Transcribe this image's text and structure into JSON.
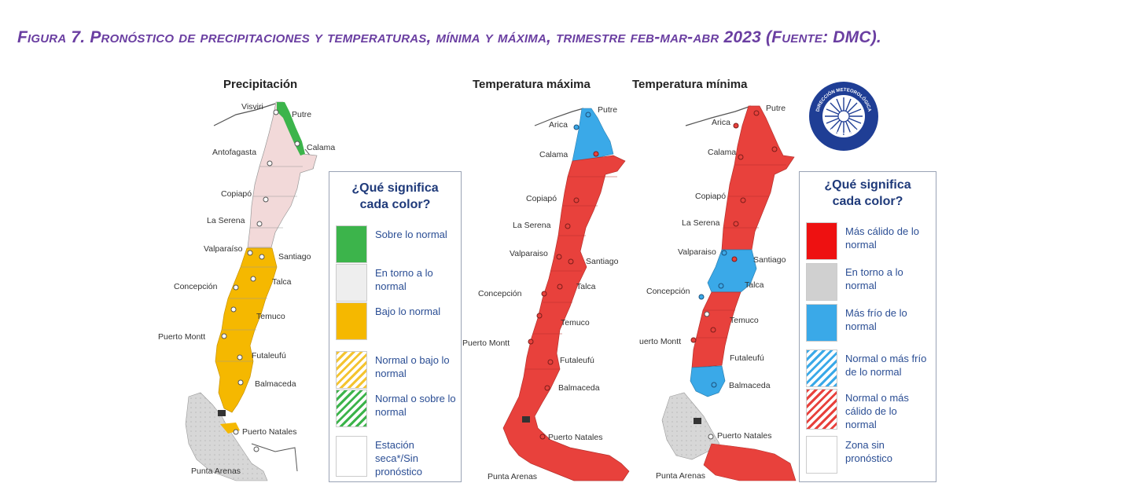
{
  "caption": "Figura 7. Pronóstico de precipitaciones y temperaturas, mínima y máxima, trimestre feb-mar-abr 2023 (Fuente: DMC).",
  "maps": {
    "precip": {
      "title": "Precipitación",
      "cities": [
        "Visviri",
        "Putre",
        "Antofagasta",
        "Calama",
        "Copiapó",
        "La Serena",
        "Valparaíso",
        "Santiago",
        "Concepción",
        "Talca",
        "Temuco",
        "Puerto Montt",
        "Futaleufú",
        "Balmaceda",
        "Puerto Natales",
        "Punta Arenas"
      ],
      "zones": [
        {
          "region": "Altiplano norte (Visviri–Calama)",
          "category": "Sobre lo normal",
          "color": "#3cb44b"
        },
        {
          "region": "Norte (Antofagasta–La Serena)",
          "category": "Estación seca*/Sin pronóstico",
          "color": "#f2d9d9"
        },
        {
          "region": "Centro–Sur (Valparaíso–Balmaceda)",
          "category": "Bajo lo normal",
          "color": "#f5b800"
        },
        {
          "region": "Austral (Magallanes)",
          "category": "Zona sin pronóstico",
          "color": "#e6e6e6"
        }
      ]
    },
    "tmax": {
      "title": "Temperatura máxima",
      "cities": [
        "Putre",
        "Arica",
        "Calama",
        "Copiapó",
        "La Serena",
        "Valparaiso",
        "Santiago",
        "Concepción",
        "Talca",
        "Temuco",
        "Puerto Montt",
        "Futaleufú",
        "Balmaceda",
        "Puerto Natales",
        "Punta Arenas"
      ],
      "zones": [
        {
          "region": "Extremo norte (Arica–Calama)",
          "category": "Más frío de lo normal",
          "color": "#3aa9e8"
        },
        {
          "region": "Resto del país",
          "category": "Más cálido de lo normal",
          "color": "#e8413c"
        }
      ]
    },
    "tmin": {
      "title": "Temperatura mínima",
      "cities": [
        "Putre",
        "Arica",
        "Calama",
        "Copiapó",
        "La Serena",
        "Valparaiso",
        "Santiago",
        "Concepción",
        "Talca",
        "Temuco",
        "uerto Montt",
        "Futaleufú",
        "Balmaceda",
        "Puerto Natales",
        "Punta Arenas"
      ],
      "zones": [
        {
          "region": "Norte",
          "category": "Más cálido de lo normal",
          "color": "#e8413c"
        },
        {
          "region": "Valparaíso–Talca",
          "category": "Más frío de lo normal",
          "color": "#3aa9e8"
        },
        {
          "region": "Balmaceda",
          "category": "Más frío de lo normal",
          "color": "#3aa9e8"
        }
      ]
    }
  },
  "legend_precip": {
    "title": "¿Qué significa\ncada color?",
    "items": [
      {
        "label": "Sobre lo normal",
        "color": "#3cb44b"
      },
      {
        "label": "En torno a lo normal",
        "color": "#eeeeee"
      },
      {
        "label": "Bajo lo normal",
        "color": "#f5b800"
      },
      {
        "label": "Normal o bajo lo normal",
        "color": "hatch-yellow"
      },
      {
        "label": "Normal o sobre lo normal",
        "color": "hatch-green"
      },
      {
        "label": "Estación seca*/Sin pronóstico",
        "color": "#ffffff"
      }
    ]
  },
  "legend_temp": {
    "title": "¿Qué significa\ncada color?",
    "items": [
      {
        "label": "Más cálido de lo normal",
        "color": "#ee1111"
      },
      {
        "label": "En torno a lo normal",
        "color": "#d0d0d0"
      },
      {
        "label": "Más frío de lo normal",
        "color": "#3aa9e8"
      },
      {
        "label": "Normal o más frío de lo normal",
        "color": "hatch-blue"
      },
      {
        "label": "Normal o más cálido de lo normal",
        "color": "hatch-red"
      },
      {
        "label": "Zona sin pronóstico",
        "color": "#ffffff"
      }
    ]
  },
  "emblem": {
    "ring_top": "DIRECCIÓN METEOROLÓGICA",
    "ring_bottom": "METEOCHILE"
  }
}
